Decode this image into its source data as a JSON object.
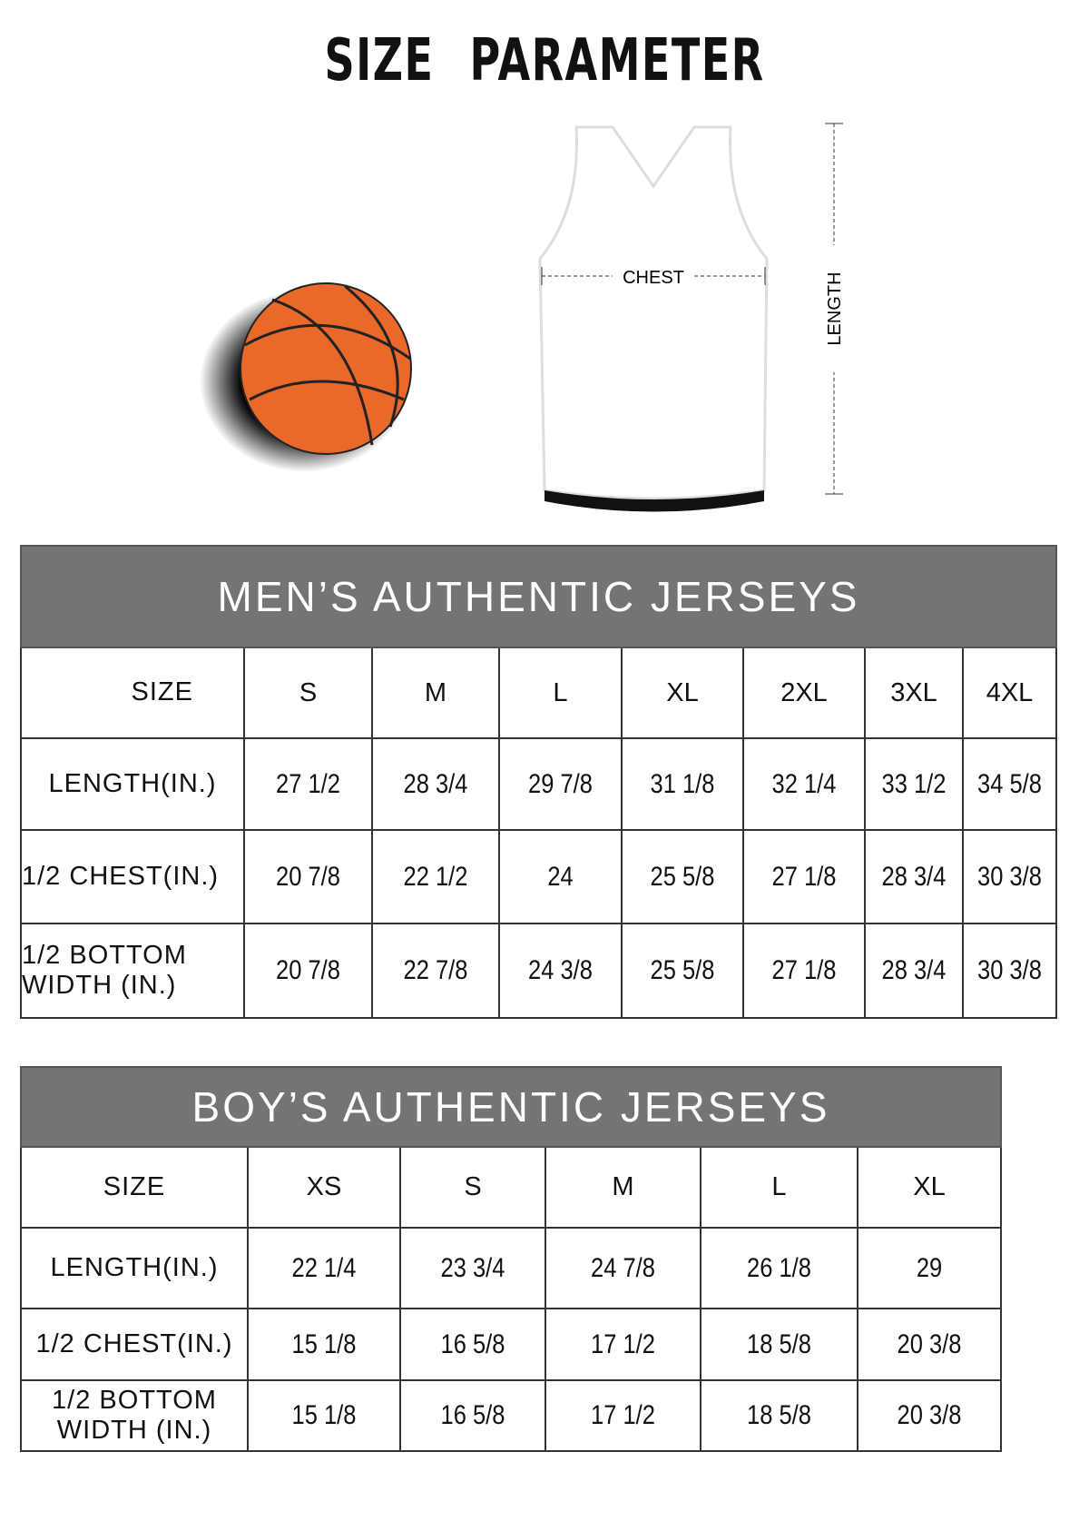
{
  "title": "SIZE PARAMETER",
  "diagram": {
    "chest_label": "CHEST",
    "length_label": "LENGTH",
    "ball_color": "#e8692a"
  },
  "men": {
    "heading": "MEN’S AUTHENTIC JERSEYS",
    "size_label": "SIZE",
    "sizes": [
      "S",
      "M",
      "L",
      "XL",
      "2XL",
      "3XL",
      "4XL"
    ],
    "rows": [
      {
        "label": "LENGTH(IN.)",
        "values": [
          "27 1/2",
          "28 3/4",
          "29 7/8",
          "31 1/8",
          "32 1/4",
          "33 1/2",
          "34 5/8"
        ]
      },
      {
        "label": "1/2 CHEST(IN.)",
        "values": [
          "20 7/8",
          "22 1/2",
          "24",
          "25 5/8",
          "27 1/8",
          "28 3/4",
          "30 3/8"
        ]
      },
      {
        "label": "1/2 BOTTOM WIDTH (IN.)",
        "values": [
          "20 7/8",
          "22 7/8",
          "24 3/8",
          "25 5/8",
          "27 1/8",
          "28 3/4",
          "30 3/8"
        ]
      }
    ]
  },
  "boy": {
    "heading": "BOY’S AUTHENTIC JERSEYS",
    "size_label": "SIZE",
    "sizes": [
      "XS",
      "S",
      "M",
      "L",
      "XL"
    ],
    "rows": [
      {
        "label": "LENGTH(IN.)",
        "values": [
          "22 1/4",
          "23 3/4",
          "24 7/8",
          "26 1/8",
          "29"
        ]
      },
      {
        "label": "1/2 CHEST(IN.)",
        "values": [
          "15 1/8",
          "16 5/8",
          "17 1/2",
          "18 5/8",
          "20 3/8"
        ]
      },
      {
        "label": "1/2 BOTTOM WIDTH (IN.)",
        "values": [
          "15 1/8",
          "16 5/8",
          "17 1/2",
          "18 5/8",
          "20 3/8"
        ]
      }
    ]
  }
}
